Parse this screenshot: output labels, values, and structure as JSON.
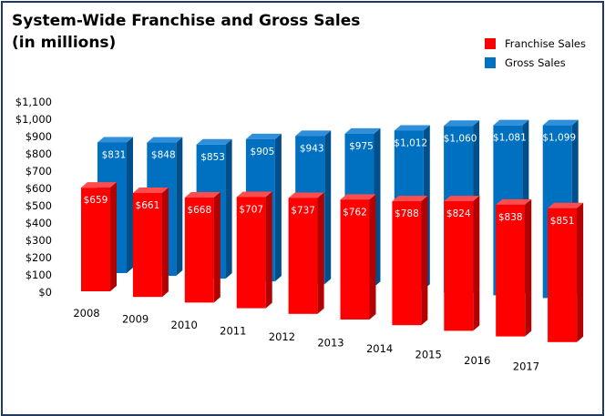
{
  "chart_data": {
    "type": "bar",
    "title": "System-Wide Franchise and Gross Sales",
    "subtitle": "(in millions)",
    "categories": [
      "2008",
      "2009",
      "2010",
      "2011",
      "2012",
      "2013",
      "2014",
      "2015",
      "2016",
      "2017"
    ],
    "series": [
      {
        "name": "Franchise Sales",
        "color": "#ff0000",
        "values": [
          659,
          661,
          668,
          707,
          737,
          762,
          788,
          824,
          838,
          851
        ],
        "labels": [
          "$659",
          "$661",
          "$668",
          "$707",
          "$737",
          "$762",
          "$788",
          "$824",
          "$838",
          "$851"
        ]
      },
      {
        "name": "Gross Sales",
        "color": "#0070c0",
        "values": [
          831,
          848,
          853,
          905,
          943,
          975,
          1012,
          1060,
          1081,
          1099
        ],
        "labels": [
          "$831",
          "$848",
          "$853",
          "$905",
          "$943",
          "$975",
          "$1,012",
          "$1,060",
          "$1,081",
          "$1,099"
        ]
      }
    ],
    "ylim": [
      0,
      1100
    ],
    "yticks": [
      "$0",
      "$100",
      "$200",
      "$300",
      "$400",
      "$500",
      "$600",
      "$700",
      "$800",
      "$900",
      "$1,000",
      "$1,100"
    ],
    "legend_position": "top-right",
    "grid": false
  }
}
